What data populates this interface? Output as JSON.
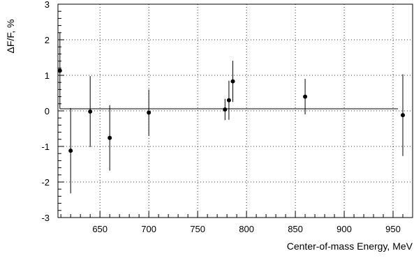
{
  "chart_data": {
    "type": "scatter",
    "title": "",
    "xlabel": "Center-of-mass Energy, MeV",
    "ylabel": "ΔF/F, %",
    "xlim": [
      607,
      970
    ],
    "ylim": [
      -3,
      3
    ],
    "x_ticks": [
      650,
      700,
      750,
      800,
      850,
      900,
      950
    ],
    "y_ticks": [
      -3,
      -2,
      -1,
      0,
      1,
      2,
      3
    ],
    "grid": true,
    "points": [
      {
        "x": 609,
        "y": 1.13,
        "err": 1.07
      },
      {
        "x": 620,
        "y": -1.12,
        "err": 1.2
      },
      {
        "x": 640,
        "y": -0.02,
        "err": 1.0
      },
      {
        "x": 660,
        "y": -0.76,
        "err": 0.92
      },
      {
        "x": 700,
        "y": -0.05,
        "err": 0.65
      },
      {
        "x": 778,
        "y": 0.04,
        "err": 0.3
      },
      {
        "x": 782,
        "y": 0.3,
        "err": 0.55
      },
      {
        "x": 786,
        "y": 0.83,
        "err": 0.58
      },
      {
        "x": 860,
        "y": 0.4,
        "err": 0.5
      },
      {
        "x": 960,
        "y": -0.12,
        "err": 1.15
      }
    ],
    "fit_line": {
      "x_start": 609,
      "x_end": 955,
      "y": 0.06
    }
  }
}
